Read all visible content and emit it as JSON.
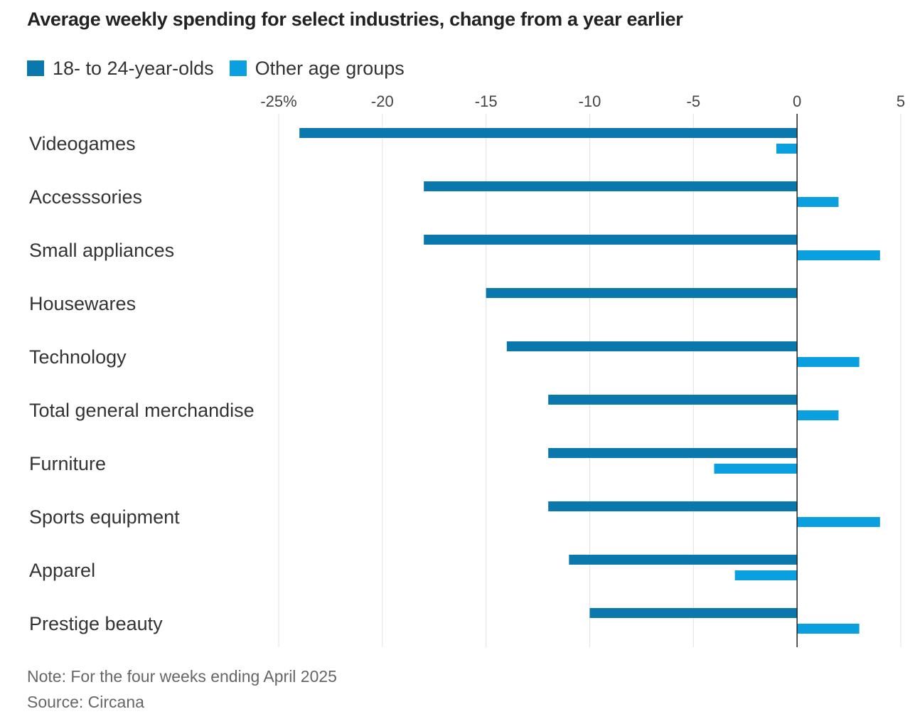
{
  "title": "Average weekly spending for select industries, change from a year earlier",
  "legend": [
    {
      "label": "18- to 24-year-olds",
      "color": "#0a77ad"
    },
    {
      "label": "Other age groups",
      "color": "#0aa0e0"
    }
  ],
  "note": "Note: For the four weeks ending April 2025",
  "source": "Source: Circana",
  "chart_data": {
    "type": "bar",
    "orientation": "horizontal",
    "categories": [
      "Videogames",
      "Accesssories",
      "Small appliances",
      "Housewares",
      "Technology",
      "Total general merchandise",
      "Furniture",
      "Sports equipment",
      "Apparel",
      "Prestige beauty"
    ],
    "series": [
      {
        "name": "18- to 24-year-olds",
        "color": "#0a77ad",
        "values": [
          -24,
          -18,
          -18,
          -15,
          -14,
          -12,
          -12,
          -12,
          -11,
          -10
        ]
      },
      {
        "name": "Other age groups",
        "color": "#0aa0e0",
        "values": [
          -1,
          2,
          4,
          0,
          3,
          2,
          -4,
          4,
          -3,
          3
        ]
      }
    ],
    "xlim": [
      -25,
      5
    ],
    "xticks": [
      -25,
      -20,
      -15,
      -10,
      -5,
      0,
      5
    ],
    "xtick_labels": [
      "-25%",
      "-20",
      "-15",
      "-10",
      "-5",
      "0",
      "5"
    ],
    "grid": true,
    "legend_position": "top-left"
  }
}
